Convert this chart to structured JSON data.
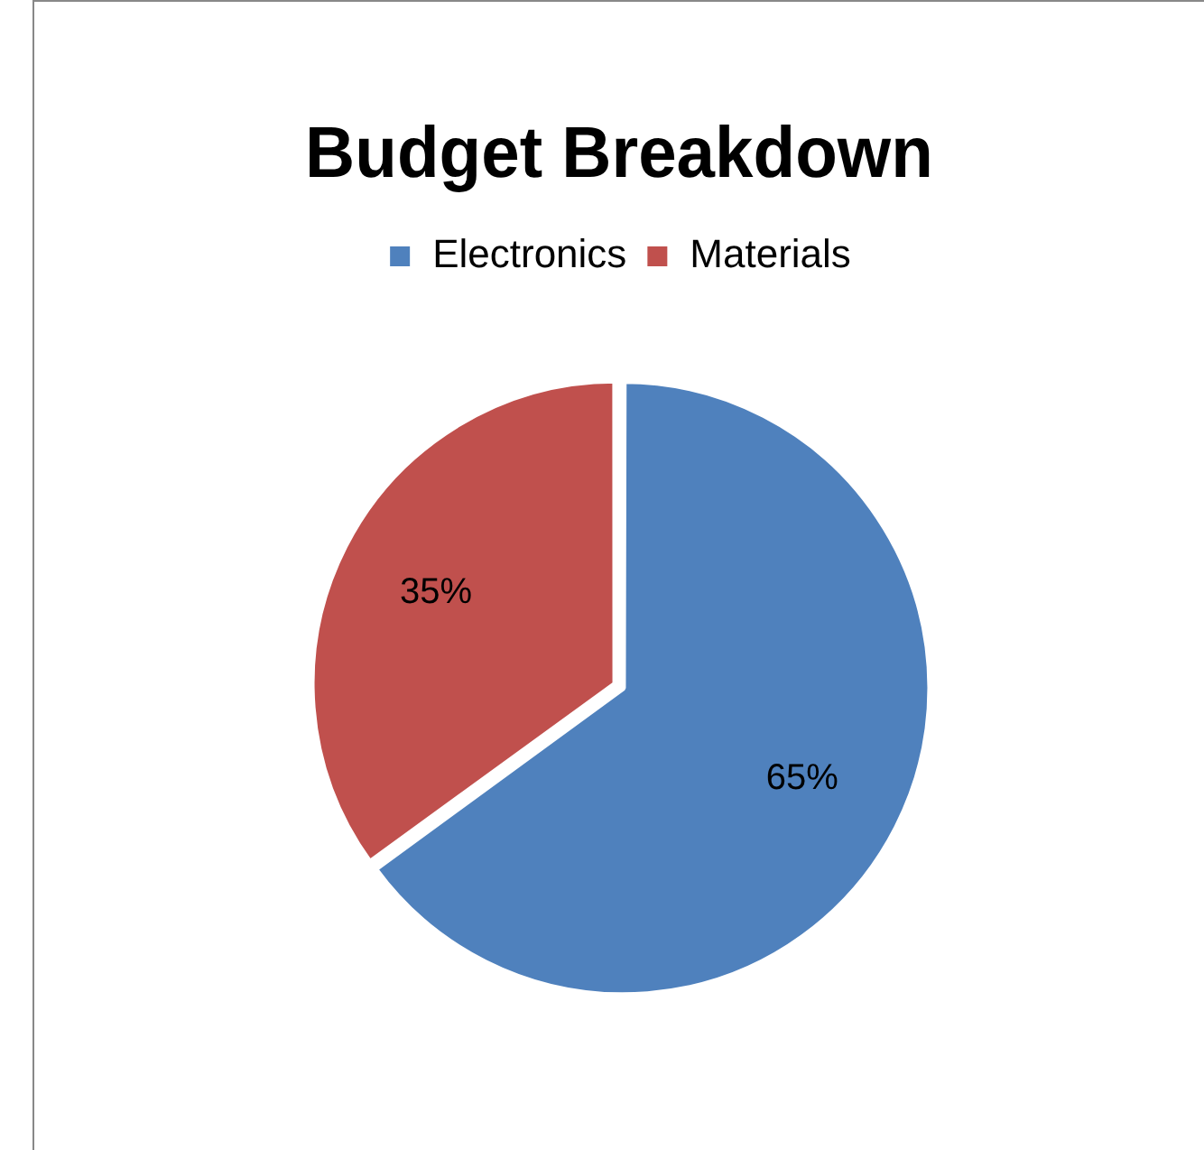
{
  "chart_data": {
    "type": "pie",
    "title": "Budget Breakdown",
    "categories": [
      "Electronics",
      "Materials"
    ],
    "values": [
      65,
      35
    ],
    "colors": [
      "#4f81bd",
      "#c0504d"
    ],
    "value_labels": [
      "65%",
      "35%"
    ],
    "legend": "top"
  }
}
